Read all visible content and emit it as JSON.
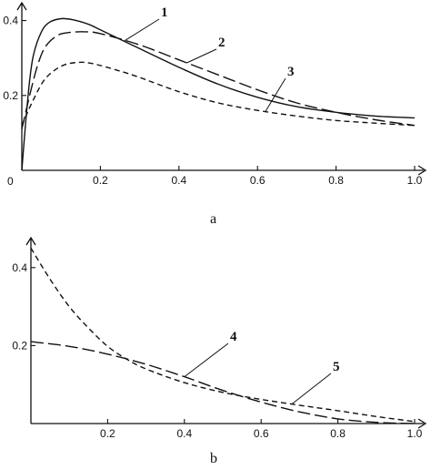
{
  "chart_data": [
    {
      "type": "line",
      "panel_label": "a",
      "xlim": [
        0,
        1.0
      ],
      "ylim": [
        0,
        0.45
      ],
      "x_ticks": [
        "0.2",
        "0.4",
        "0.6",
        "0.8",
        "1.0"
      ],
      "y_ticks": [
        "0.2",
        "0.4"
      ],
      "origin_label": "0",
      "grid": false,
      "series": [
        {
          "label": "1",
          "style": "solid",
          "points": [
            [
              0,
              0
            ],
            [
              0.01,
              0.13
            ],
            [
              0.02,
              0.24
            ],
            [
              0.03,
              0.31
            ],
            [
              0.05,
              0.37
            ],
            [
              0.07,
              0.395
            ],
            [
              0.1,
              0.405
            ],
            [
              0.13,
              0.402
            ],
            [
              0.17,
              0.39
            ],
            [
              0.2,
              0.375
            ],
            [
              0.25,
              0.35
            ],
            [
              0.3,
              0.325
            ],
            [
              0.35,
              0.3
            ],
            [
              0.4,
              0.275
            ],
            [
              0.5,
              0.23
            ],
            [
              0.6,
              0.195
            ],
            [
              0.7,
              0.17
            ],
            [
              0.8,
              0.155
            ],
            [
              0.9,
              0.145
            ],
            [
              1.0,
              0.14
            ]
          ]
        },
        {
          "label": "2",
          "style": "long-dash",
          "points": [
            [
              0,
              0.11
            ],
            [
              0.02,
              0.2
            ],
            [
              0.04,
              0.28
            ],
            [
              0.06,
              0.33
            ],
            [
              0.09,
              0.36
            ],
            [
              0.12,
              0.368
            ],
            [
              0.16,
              0.37
            ],
            [
              0.2,
              0.365
            ],
            [
              0.3,
              0.335
            ],
            [
              0.4,
              0.295
            ],
            [
              0.5,
              0.255
            ],
            [
              0.6,
              0.215
            ],
            [
              0.7,
              0.18
            ],
            [
              0.8,
              0.155
            ],
            [
              0.9,
              0.135
            ],
            [
              1.0,
              0.12
            ]
          ]
        },
        {
          "label": "3",
          "style": "short-dash",
          "points": [
            [
              0,
              0.12
            ],
            [
              0.03,
              0.19
            ],
            [
              0.06,
              0.245
            ],
            [
              0.1,
              0.278
            ],
            [
              0.14,
              0.288
            ],
            [
              0.18,
              0.285
            ],
            [
              0.25,
              0.265
            ],
            [
              0.3,
              0.248
            ],
            [
              0.4,
              0.21
            ],
            [
              0.5,
              0.18
            ],
            [
              0.6,
              0.16
            ],
            [
              0.7,
              0.145
            ],
            [
              0.8,
              0.133
            ],
            [
              0.9,
              0.126
            ],
            [
              1.0,
              0.12
            ]
          ]
        }
      ]
    },
    {
      "type": "line",
      "panel_label": "b",
      "xlim": [
        0,
        1.0
      ],
      "ylim": [
        0,
        0.5
      ],
      "x_ticks": [
        "0.2",
        "0.4",
        "0.6",
        "0.8",
        "1.0"
      ],
      "y_ticks": [
        "0.2",
        "0.4"
      ],
      "grid": false,
      "series": [
        {
          "label": "4",
          "style": "long-dash",
          "points": [
            [
              0,
              0.21
            ],
            [
              0.1,
              0.198
            ],
            [
              0.2,
              0.178
            ],
            [
              0.3,
              0.152
            ],
            [
              0.4,
              0.12
            ],
            [
              0.5,
              0.085
            ],
            [
              0.6,
              0.055
            ],
            [
              0.7,
              0.03
            ],
            [
              0.8,
              0.012
            ],
            [
              0.9,
              0.003
            ],
            [
              1.0,
              0
            ]
          ]
        },
        {
          "label": "5",
          "style": "short-dash",
          "points": [
            [
              0,
              0.45
            ],
            [
              0.05,
              0.37
            ],
            [
              0.1,
              0.3
            ],
            [
              0.15,
              0.245
            ],
            [
              0.2,
              0.198
            ],
            [
              0.25,
              0.165
            ],
            [
              0.3,
              0.14
            ],
            [
              0.4,
              0.105
            ],
            [
              0.5,
              0.08
            ],
            [
              0.6,
              0.062
            ],
            [
              0.7,
              0.047
            ],
            [
              0.8,
              0.033
            ],
            [
              0.9,
              0.018
            ],
            [
              1.0,
              0.005
            ]
          ]
        }
      ]
    }
  ]
}
